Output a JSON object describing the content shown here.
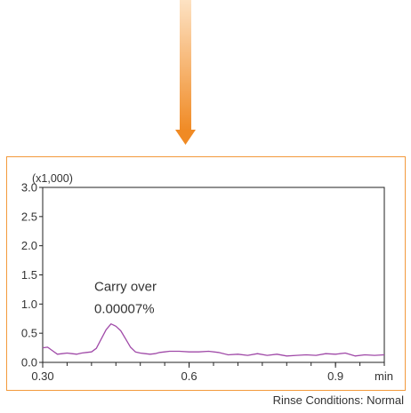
{
  "arrow": {
    "color_top": "#fde2c3",
    "color_bottom": "#f08a24"
  },
  "frame": {
    "border_color": "#f39a3c"
  },
  "chart_data": {
    "type": "line",
    "multiplier_label": "(x1,000)",
    "xlabel": "min",
    "ylabel": "",
    "xlim": [
      0.3,
      1.0
    ],
    "ylim": [
      0.0,
      3.0
    ],
    "y_ticks": [
      0.0,
      0.5,
      1.0,
      1.5,
      2.0,
      2.5,
      3.0
    ],
    "y_tick_labels": [
      "0.0",
      "0.5",
      "1.0",
      "1.5",
      "2.0",
      "2.5",
      "3.0"
    ],
    "x_ticks": [
      0.3,
      0.6,
      0.9
    ],
    "x_tick_labels": [
      "0.30",
      "0.6",
      "0.9"
    ],
    "line_color": "#a04aa8",
    "annotation": {
      "line1": "Carry over",
      "line2": "0.00007%",
      "x": 0.45,
      "y": 0.62
    },
    "series": [
      {
        "x": [
          0.3,
          0.31,
          0.32,
          0.33,
          0.34,
          0.35,
          0.36,
          0.37,
          0.38,
          0.39,
          0.4,
          0.41,
          0.42,
          0.43,
          0.44,
          0.45,
          0.46,
          0.47,
          0.48,
          0.49,
          0.5,
          0.51,
          0.52,
          0.53,
          0.54,
          0.55,
          0.56,
          0.58,
          0.6,
          0.62,
          0.64,
          0.66,
          0.68,
          0.7,
          0.72,
          0.74,
          0.76,
          0.78,
          0.8,
          0.82,
          0.84,
          0.86,
          0.88,
          0.9,
          0.92,
          0.94,
          0.96,
          0.98,
          1.0
        ],
        "y": [
          0.25,
          0.26,
          0.2,
          0.14,
          0.15,
          0.16,
          0.15,
          0.14,
          0.16,
          0.17,
          0.18,
          0.24,
          0.4,
          0.56,
          0.66,
          0.62,
          0.54,
          0.4,
          0.26,
          0.18,
          0.16,
          0.15,
          0.14,
          0.15,
          0.17,
          0.18,
          0.19,
          0.19,
          0.18,
          0.18,
          0.19,
          0.17,
          0.13,
          0.14,
          0.12,
          0.15,
          0.12,
          0.14,
          0.11,
          0.12,
          0.13,
          0.12,
          0.15,
          0.14,
          0.16,
          0.11,
          0.13,
          0.12,
          0.13
        ]
      }
    ]
  },
  "caption": "Rinse Conditions: Normal"
}
